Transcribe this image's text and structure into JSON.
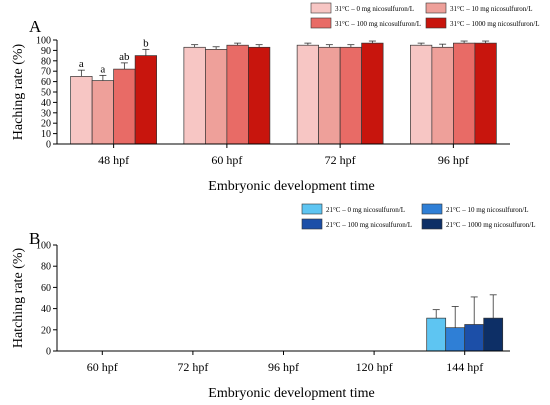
{
  "figure": {
    "panel_a_letter": "A",
    "panel_b_letter": "B"
  },
  "chart_data": [
    {
      "type": "bar",
      "panel": "A",
      "ylabel": "Haching rate (%)",
      "xlabel": "Embryonic development time",
      "ylim": [
        0,
        100
      ],
      "yticks": [
        0,
        10,
        20,
        30,
        40,
        50,
        60,
        70,
        80,
        90,
        100
      ],
      "categories": [
        "48 hpf",
        "60 hpf",
        "72 hpf",
        "96 hpf"
      ],
      "legend_position": "top-right",
      "series": [
        {
          "name": "31°C – 0 mg nicosulfuron/L",
          "color": "#f7c6c4",
          "values": [
            65,
            93,
            95,
            95
          ],
          "errors": [
            6,
            2.5,
            2,
            2
          ]
        },
        {
          "name": "31°C – 10 mg nicosulfuron/L",
          "color": "#eea09a",
          "values": [
            61,
            91,
            93,
            93
          ],
          "errors": [
            5,
            2.5,
            2.5,
            3
          ]
        },
        {
          "name": "31°C – 100 mg nicosulfuron/L",
          "color": "#e86b66",
          "values": [
            72,
            95,
            93,
            97
          ],
          "errors": [
            6,
            2,
            2.5,
            2
          ]
        },
        {
          "name": "31°C – 1000 mg nicosulfuron/L",
          "color": "#c8150d",
          "values": [
            85,
            93,
            97,
            97
          ],
          "errors": [
            6,
            2.5,
            2,
            2
          ]
        }
      ],
      "annotations": [
        [
          "a",
          "a",
          "ab",
          "b"
        ],
        [],
        [],
        []
      ]
    },
    {
      "type": "bar",
      "panel": "B",
      "ylabel": "Hatching rate (%)",
      "xlabel": "Embryonic development time",
      "ylim": [
        0,
        100
      ],
      "yticks": [
        0,
        20,
        40,
        60,
        80,
        100
      ],
      "categories": [
        "60 hpf",
        "72 hpf",
        "96 hpf",
        "120 hpf",
        "144 hpf"
      ],
      "legend_position": "top-right",
      "series": [
        {
          "name": "21°C – 0 mg nicosulfuron/L",
          "color": "#5ec5f2",
          "values": [
            0,
            0,
            0,
            0,
            31
          ],
          "errors": [
            0,
            0,
            0,
            0,
            8
          ]
        },
        {
          "name": "21°C – 10 mg nicosulfuron/L",
          "color": "#2f7fd6",
          "values": [
            0,
            0,
            0,
            0,
            22
          ],
          "errors": [
            0,
            0,
            0,
            0,
            20
          ]
        },
        {
          "name": "21°C – 100 mg nicosulfuron/L",
          "color": "#1c4fa8",
          "values": [
            0,
            0,
            0,
            0,
            25
          ],
          "errors": [
            0,
            0,
            0,
            0,
            26
          ]
        },
        {
          "name": "21°C – 1000 mg nicosulfuron/L",
          "color": "#0d2f66",
          "values": [
            0,
            0,
            0,
            0,
            31
          ],
          "errors": [
            0,
            0,
            0,
            0,
            22
          ]
        }
      ]
    }
  ]
}
